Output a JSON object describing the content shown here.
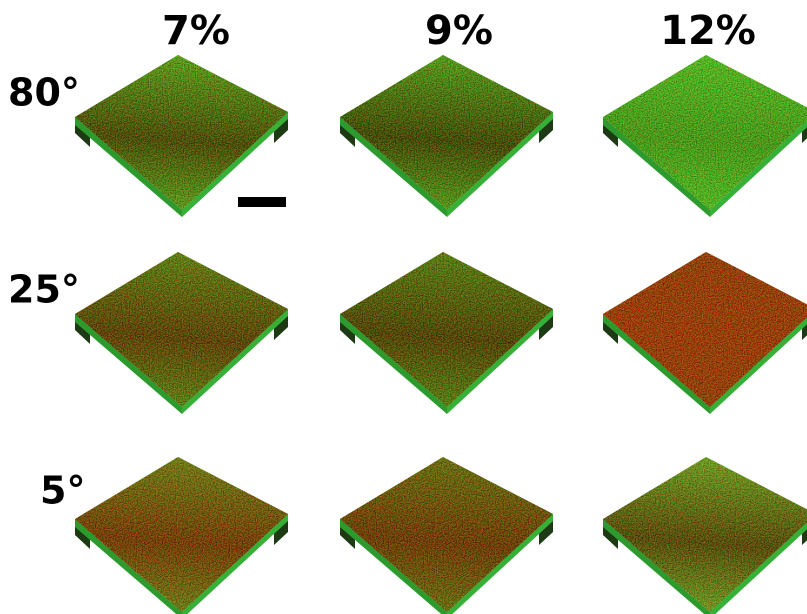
{
  "columns": [
    "7%",
    "9%",
    "12%"
  ],
  "rows": [
    "80°",
    "25°",
    "5°"
  ]
}
